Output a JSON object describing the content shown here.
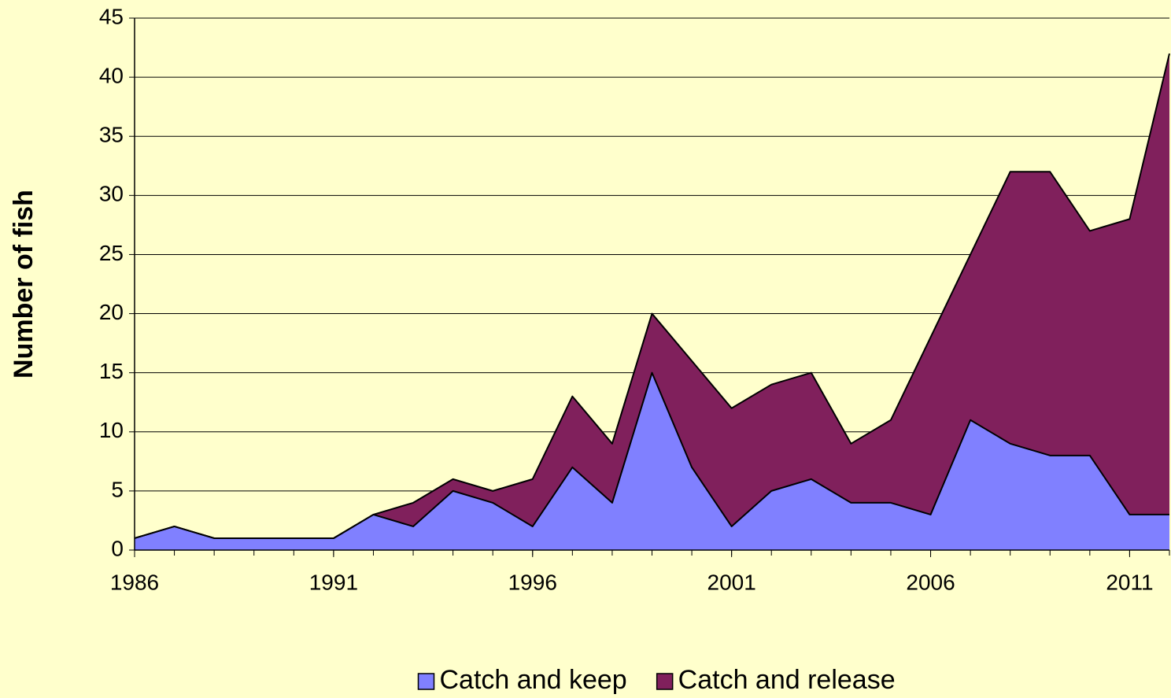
{
  "chart_data": {
    "type": "stacked_area",
    "y_label": "Number of fish",
    "x": [
      1986,
      1987,
      1988,
      1989,
      1990,
      1991,
      1992,
      1993,
      1994,
      1995,
      1996,
      1997,
      1998,
      1999,
      2000,
      2001,
      2002,
      2003,
      2004,
      2005,
      2006,
      2007,
      2008,
      2009,
      2010,
      2011,
      2012
    ],
    "series": [
      {
        "name": "Catch and keep",
        "color": "#8080ff",
        "values": [
          1,
          2,
          1,
          1,
          1,
          1,
          3,
          2,
          5,
          4,
          2,
          7,
          4,
          15,
          7,
          2,
          5,
          6,
          4,
          4,
          3,
          11,
          9,
          8,
          8,
          3,
          3
        ]
      },
      {
        "name": "Catch and release",
        "color": "#80205c",
        "values": [
          0,
          0,
          0,
          0,
          0,
          0,
          0,
          2,
          1,
          1,
          4,
          6,
          5,
          5,
          9,
          10,
          9,
          9,
          5,
          7,
          15,
          14,
          23,
          24,
          19,
          25,
          39
        ]
      }
    ],
    "xlim": [
      1986,
      2012
    ],
    "xticks": [
      1986,
      1991,
      1996,
      2001,
      2006,
      2011
    ],
    "ylim": [
      0,
      45
    ],
    "yticks": [
      0,
      5,
      10,
      15,
      20,
      25,
      30,
      35,
      40,
      45
    ],
    "grid": true,
    "legend": "bottom"
  }
}
